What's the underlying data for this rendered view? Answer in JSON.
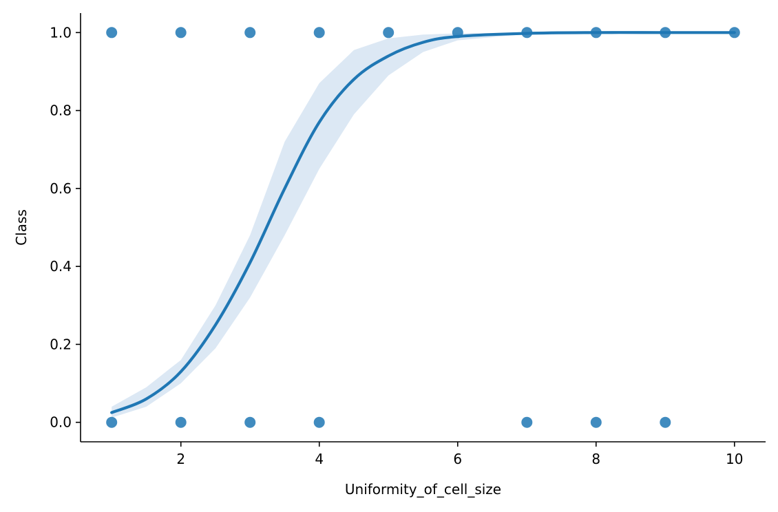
{
  "chart_data": {
    "type": "scatter",
    "xlabel": "Uniformity_of_cell_size",
    "ylabel": "Class",
    "xlim": [
      0.55,
      10.45
    ],
    "ylim": [
      -0.05,
      1.05
    ],
    "xticks": [
      2,
      4,
      6,
      8,
      10
    ],
    "yticks": [
      0.0,
      0.2,
      0.4,
      0.6,
      0.8,
      1.0
    ],
    "xtick_labels": [
      "2",
      "4",
      "6",
      "8",
      "10"
    ],
    "ytick_labels": [
      "0.0",
      "0.2",
      "0.4",
      "0.6",
      "0.8",
      "1.0"
    ],
    "grid": false,
    "colors": {
      "points": "#1f77b4",
      "line": "#1f77b4",
      "ci_band": "#dce8f4"
    },
    "points": [
      {
        "x": 1,
        "y": 1
      },
      {
        "x": 2,
        "y": 1
      },
      {
        "x": 3,
        "y": 1
      },
      {
        "x": 4,
        "y": 1
      },
      {
        "x": 5,
        "y": 1
      },
      {
        "x": 6,
        "y": 1
      },
      {
        "x": 7,
        "y": 1
      },
      {
        "x": 8,
        "y": 1
      },
      {
        "x": 9,
        "y": 1
      },
      {
        "x": 10,
        "y": 1
      },
      {
        "x": 1,
        "y": 0
      },
      {
        "x": 2,
        "y": 0
      },
      {
        "x": 3,
        "y": 0
      },
      {
        "x": 4,
        "y": 0
      },
      {
        "x": 7,
        "y": 0
      },
      {
        "x": 8,
        "y": 0
      },
      {
        "x": 9,
        "y": 0
      }
    ],
    "fit_curve": {
      "x": [
        1,
        1.5,
        2,
        2.5,
        3,
        3.5,
        4,
        4.5,
        5,
        5.5,
        6,
        7,
        8,
        9,
        10
      ],
      "y": [
        0.025,
        0.06,
        0.13,
        0.25,
        0.41,
        0.6,
        0.77,
        0.88,
        0.94,
        0.975,
        0.99,
        0.998,
        1.0,
        1.0,
        1.0
      ]
    },
    "ci_band": {
      "x": [
        1,
        1.5,
        2,
        2.5,
        3,
        3.5,
        4,
        4.5,
        5,
        5.5,
        6,
        7,
        8,
        9,
        10
      ],
      "lower": [
        0.012,
        0.04,
        0.1,
        0.19,
        0.32,
        0.48,
        0.65,
        0.79,
        0.89,
        0.95,
        0.98,
        0.996,
        1.0,
        1.0,
        1.0
      ],
      "upper": [
        0.04,
        0.09,
        0.16,
        0.3,
        0.48,
        0.72,
        0.87,
        0.955,
        0.985,
        0.995,
        0.998,
        1.0,
        1.0,
        1.0,
        1.0
      ]
    }
  }
}
